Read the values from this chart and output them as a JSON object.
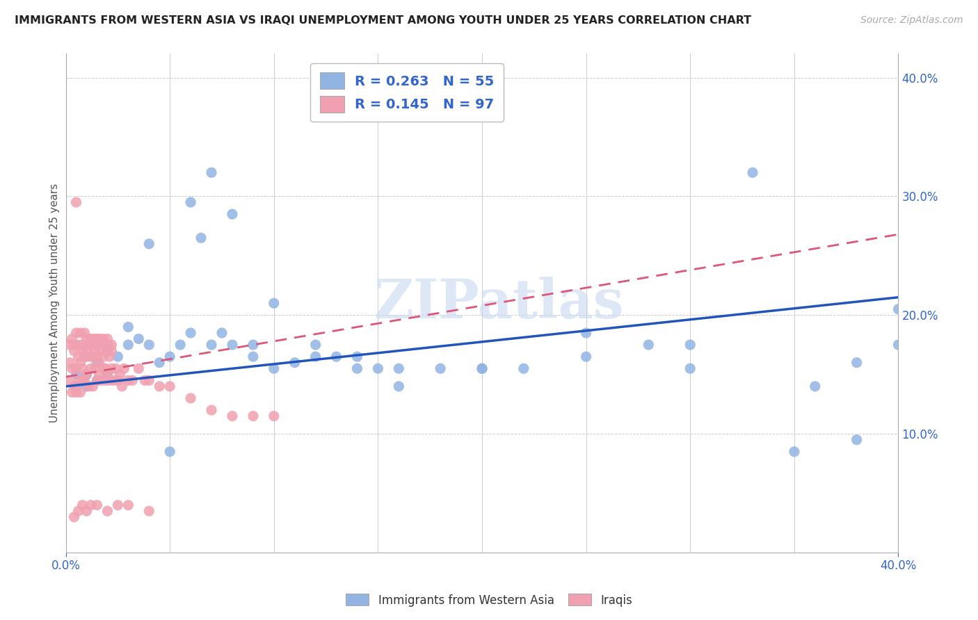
{
  "title": "IMMIGRANTS FROM WESTERN ASIA VS IRAQI UNEMPLOYMENT AMONG YOUTH UNDER 25 YEARS CORRELATION CHART",
  "source": "Source: ZipAtlas.com",
  "ylabel": "Unemployment Among Youth under 25 years",
  "ylabel_right_vals": [
    0.1,
    0.2,
    0.3,
    0.4
  ],
  "xlim": [
    0.0,
    0.4
  ],
  "ylim": [
    0.0,
    0.42
  ],
  "blue_R": "0.263",
  "blue_N": "55",
  "pink_R": "0.145",
  "pink_N": "97",
  "blue_color": "#92b4e3",
  "pink_color": "#f0a0b0",
  "blue_line_color": "#2255bb",
  "pink_line_color": "#dd5577",
  "watermark": "ZIPatlas",
  "legend_label_blue": "Immigrants from Western Asia",
  "legend_label_pink": "Iraqis",
  "blue_line_x0": 0.0,
  "blue_line_x1": 0.4,
  "blue_line_y0": 0.14,
  "blue_line_y1": 0.215,
  "pink_line_x0": 0.0,
  "pink_line_x1": 0.4,
  "pink_line_y0": 0.148,
  "pink_line_y1": 0.268,
  "blue_dots_x": [
    0.005,
    0.01,
    0.015,
    0.02,
    0.025,
    0.03,
    0.035,
    0.04,
    0.045,
    0.05,
    0.055,
    0.06,
    0.065,
    0.07,
    0.075,
    0.08,
    0.09,
    0.1,
    0.11,
    0.12,
    0.13,
    0.14,
    0.15,
    0.16,
    0.18,
    0.2,
    0.22,
    0.25,
    0.28,
    0.3,
    0.33,
    0.36,
    0.38,
    0.4,
    0.005,
    0.01,
    0.015,
    0.02,
    0.03,
    0.04,
    0.05,
    0.06,
    0.07,
    0.08,
    0.09,
    0.1,
    0.12,
    0.14,
    0.16,
    0.2,
    0.25,
    0.3,
    0.35,
    0.38,
    0.4
  ],
  "blue_dots_y": [
    0.15,
    0.14,
    0.16,
    0.17,
    0.165,
    0.175,
    0.18,
    0.175,
    0.16,
    0.165,
    0.175,
    0.185,
    0.265,
    0.175,
    0.185,
    0.285,
    0.165,
    0.155,
    0.16,
    0.165,
    0.165,
    0.155,
    0.155,
    0.14,
    0.155,
    0.155,
    0.155,
    0.165,
    0.175,
    0.175,
    0.32,
    0.14,
    0.16,
    0.205,
    0.14,
    0.15,
    0.145,
    0.15,
    0.19,
    0.26,
    0.085,
    0.295,
    0.32,
    0.175,
    0.175,
    0.21,
    0.175,
    0.165,
    0.155,
    0.155,
    0.185,
    0.155,
    0.085,
    0.095,
    0.175
  ],
  "pink_dots_x": [
    0.001,
    0.002,
    0.003,
    0.004,
    0.005,
    0.005,
    0.006,
    0.007,
    0.008,
    0.008,
    0.009,
    0.01,
    0.01,
    0.011,
    0.012,
    0.012,
    0.013,
    0.014,
    0.015,
    0.015,
    0.016,
    0.017,
    0.018,
    0.018,
    0.019,
    0.02,
    0.02,
    0.021,
    0.022,
    0.022,
    0.003,
    0.004,
    0.005,
    0.006,
    0.007,
    0.008,
    0.009,
    0.01,
    0.011,
    0.012,
    0.013,
    0.014,
    0.015,
    0.016,
    0.017,
    0.018,
    0.019,
    0.02,
    0.021,
    0.022,
    0.023,
    0.024,
    0.025,
    0.026,
    0.027,
    0.028,
    0.03,
    0.032,
    0.035,
    0.038,
    0.04,
    0.045,
    0.05,
    0.06,
    0.07,
    0.08,
    0.09,
    0.1,
    0.002,
    0.003,
    0.004,
    0.005,
    0.006,
    0.007,
    0.008,
    0.009,
    0.01,
    0.011,
    0.012,
    0.013,
    0.014,
    0.015,
    0.016,
    0.017,
    0.018,
    0.019,
    0.02,
    0.004,
    0.006,
    0.008,
    0.01,
    0.012,
    0.015,
    0.02,
    0.025,
    0.03,
    0.04
  ],
  "pink_dots_y": [
    0.145,
    0.16,
    0.155,
    0.17,
    0.155,
    0.295,
    0.165,
    0.16,
    0.155,
    0.17,
    0.165,
    0.165,
    0.17,
    0.175,
    0.165,
    0.18,
    0.165,
    0.17,
    0.165,
    0.18,
    0.16,
    0.17,
    0.165,
    0.175,
    0.155,
    0.17,
    0.175,
    0.165,
    0.175,
    0.17,
    0.135,
    0.14,
    0.135,
    0.145,
    0.135,
    0.145,
    0.145,
    0.15,
    0.14,
    0.155,
    0.14,
    0.155,
    0.145,
    0.15,
    0.145,
    0.155,
    0.145,
    0.15,
    0.145,
    0.155,
    0.145,
    0.155,
    0.145,
    0.15,
    0.14,
    0.155,
    0.145,
    0.145,
    0.155,
    0.145,
    0.145,
    0.14,
    0.14,
    0.13,
    0.12,
    0.115,
    0.115,
    0.115,
    0.175,
    0.18,
    0.175,
    0.185,
    0.175,
    0.185,
    0.175,
    0.185,
    0.18,
    0.175,
    0.18,
    0.175,
    0.18,
    0.175,
    0.18,
    0.175,
    0.18,
    0.175,
    0.18,
    0.03,
    0.035,
    0.04,
    0.035,
    0.04,
    0.04,
    0.035,
    0.04,
    0.04,
    0.035
  ]
}
